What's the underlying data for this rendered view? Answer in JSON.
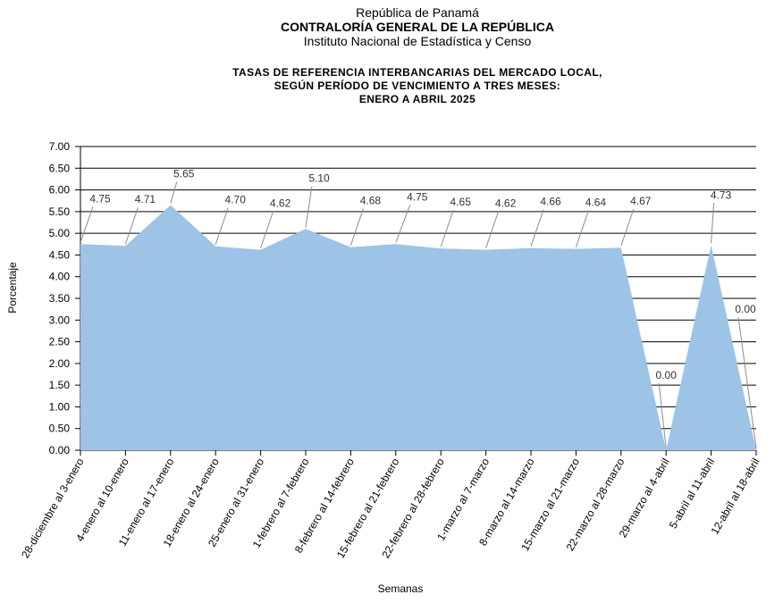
{
  "header": {
    "line1": "República de Panamá",
    "line2": "CONTRALORÍA GENERAL DE LA REPÚBLICA",
    "line3": "Instituto Nacional de Estadística y Censo"
  },
  "chart_data": {
    "type": "area",
    "title_lines": [
      "TASAS DE REFERENCIA INTERBANCARIAS DEL MERCADO LOCAL,",
      "SEGÚN PERÍODO DE VENCIMIENTO A TRES MESES:",
      "ENERO  A ABRIL 2025"
    ],
    "xlabel": "Semanas",
    "ylabel": "Porcentaje",
    "ylim": [
      0,
      7
    ],
    "ytick_step": 0.5,
    "grid": true,
    "legend": "none",
    "colors": {
      "fill": "#9DC3E6",
      "grid": "#000000",
      "leader": "#8C8C8C"
    },
    "categories": [
      "28-diciembre al 3-enero",
      "4-enero al 10-enero",
      "11-enero al 17-enero",
      "18-enero al 24-enero",
      "25-enero al 31-enero",
      "1-febrero al 7-febrero",
      "8-febrero al 14-febrero",
      "15-febrero al 21-febrero",
      "22-febrero al 28-febrero",
      "1-marzo al 7-marzo",
      "8-marzo al 14-marzo",
      "15-marzo al 21-marzo",
      "22-marzo al 28-marzo",
      "29-marzo al 4-abril",
      "5-abril al 11-abril",
      "12-abril al 18-abril"
    ],
    "values": [
      4.75,
      4.71,
      5.65,
      4.7,
      4.62,
      5.1,
      4.68,
      4.75,
      4.65,
      4.62,
      4.66,
      4.64,
      4.67,
      0.0,
      4.73,
      0.0
    ],
    "value_labels": [
      "4.75",
      "4.71",
      "5.65",
      "4.70",
      "4.62",
      "5.10",
      "4.68",
      "4.75",
      "4.65",
      "4.62",
      "4.66",
      "4.64",
      "4.67",
      "0.00",
      "4.73",
      "0.00"
    ]
  }
}
